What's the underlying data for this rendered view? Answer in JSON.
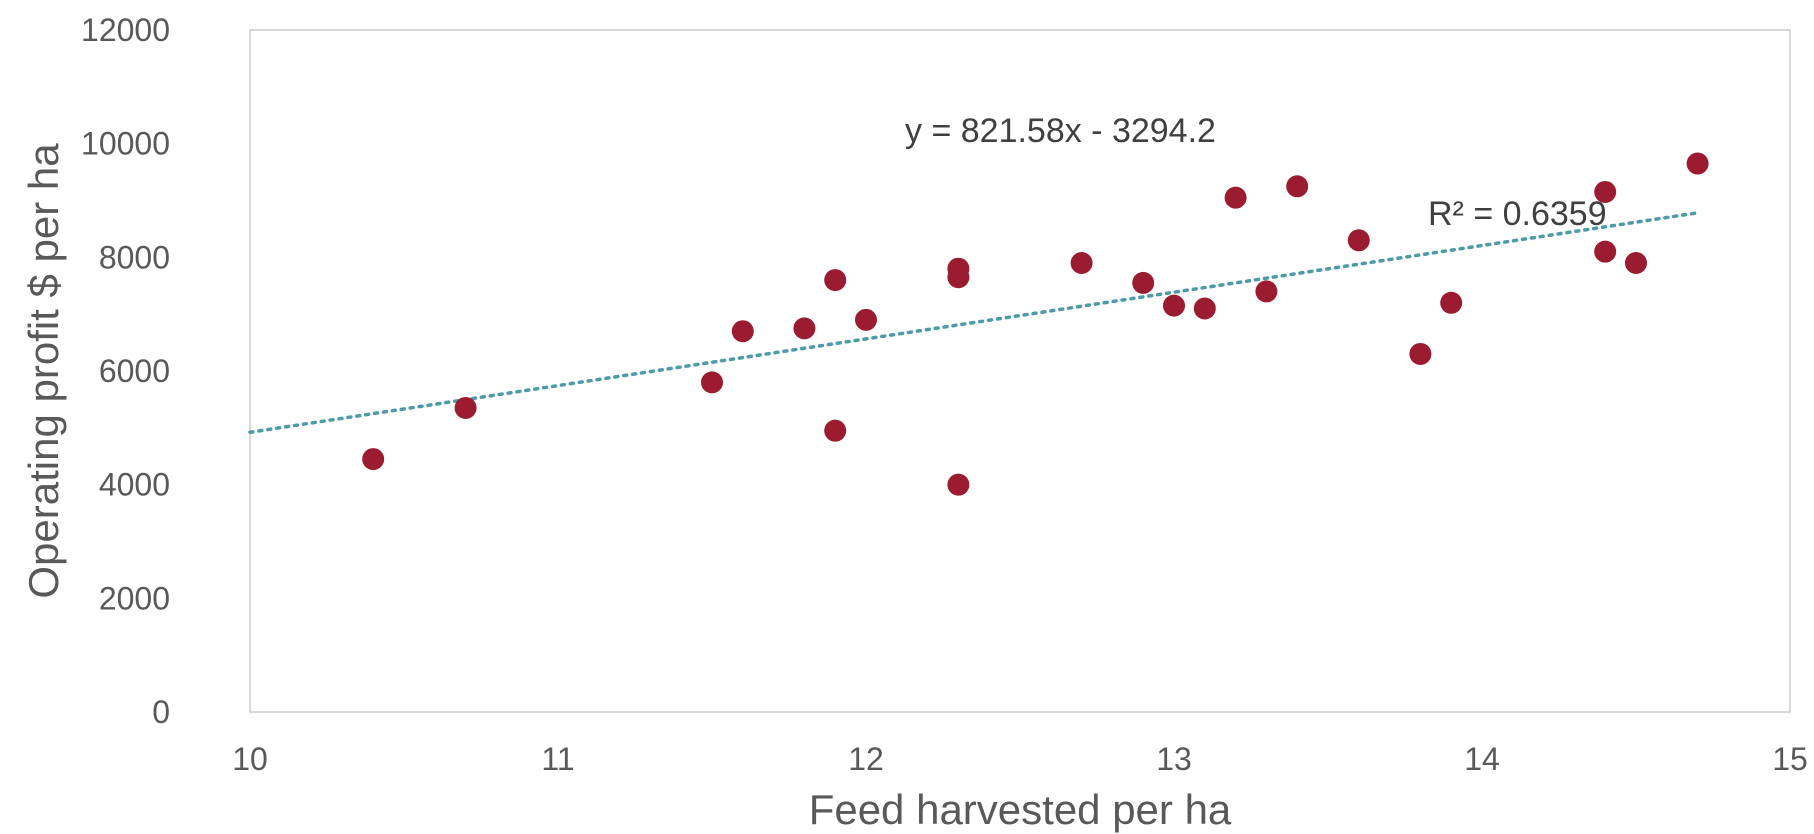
{
  "chart_data": {
    "type": "scatter",
    "title": "",
    "xlabel": "Feed harvested per ha",
    "ylabel": "Operating profit $ per ha",
    "xlim": [
      10,
      15
    ],
    "ylim": [
      0,
      12000
    ],
    "x_ticks": [
      10,
      11,
      12,
      13,
      14,
      15
    ],
    "y_ticks": [
      0,
      2000,
      4000,
      6000,
      8000,
      10000,
      12000
    ],
    "grid": false,
    "legend": "none",
    "colors": {
      "marker": "#9b1b30",
      "trendline": "#4f9aa8",
      "plot_border": "#d9d9d9",
      "text": "#595959"
    },
    "series": [
      {
        "x": [
          10.4,
          10.7,
          11.5,
          11.6,
          11.8,
          11.9,
          11.9,
          12.0,
          12.3,
          12.3,
          12.3,
          12.7,
          12.9,
          13.0,
          13.1,
          13.2,
          13.3,
          13.4,
          13.6,
          13.8,
          13.9,
          14.4,
          14.4,
          14.5,
          14.7
        ],
        "y": [
          4450,
          5350,
          5800,
          6700,
          6750,
          4950,
          7600,
          6900,
          7650,
          7800,
          4000,
          7900,
          7550,
          7150,
          7100,
          9050,
          7400,
          9250,
          8300,
          6300,
          7200,
          9150,
          8100,
          7900,
          9650
        ]
      }
    ],
    "trendline": {
      "type": "linear",
      "style": "dotted",
      "slope": 821.58,
      "intercept": -3294.2,
      "x_range": [
        10,
        14.7
      ],
      "equation_label": "y = 821.58x  - 3294.2",
      "r2_label": "R² = 0.6359"
    }
  }
}
